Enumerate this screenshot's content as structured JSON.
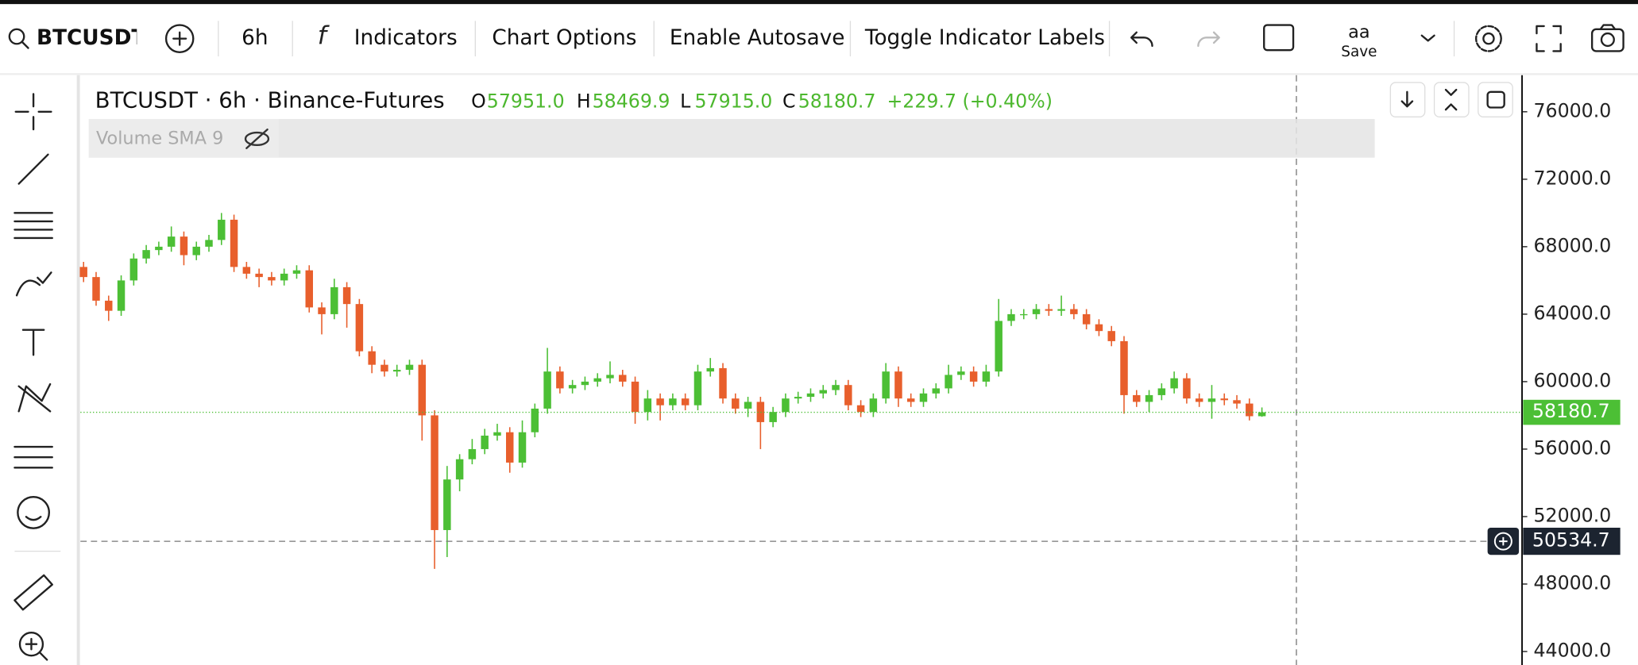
{
  "toolbar": {
    "symbol": "BTCUSDT",
    "interval": "6h",
    "buttons": [
      "Indicators",
      "Chart Options",
      "Enable Autosave",
      "Toggle Indicator Labels"
    ],
    "layout_label": "aa",
    "save": "Save"
  },
  "chart_data": {
    "type": "candlestick",
    "title": "BTCUSDT · 6h · Binance-Futures",
    "header": {
      "labels": [
        "O",
        "H",
        "L",
        "C"
      ],
      "values": [
        "57951.0",
        "58469.9",
        "57915.0",
        "58180.7"
      ],
      "change": "+229.7 (+0.40%)"
    },
    "indicator": "Volume SMA 9",
    "up_color": "#4cbf35",
    "down_color": "#e85f2c",
    "ylim": [
      43200,
      78170
    ],
    "yticks": [
      {
        "value": 76000,
        "label": "76000.0"
      },
      {
        "value": 72000,
        "label": "72000.0"
      },
      {
        "value": 68000,
        "label": "68000.0"
      },
      {
        "value": 64000,
        "label": "64000.0"
      },
      {
        "value": 60000,
        "label": "60000.0"
      },
      {
        "value": 56000,
        "label": "56000.0"
      },
      {
        "value": 52000,
        "label": "52000.0"
      },
      {
        "value": 48000,
        "label": "48000.0"
      },
      {
        "value": 44000,
        "label": "44000.0"
      }
    ],
    "last_price": {
      "value": 58180.7,
      "label": "58180.7"
    },
    "crosshair": {
      "value": 50534.7,
      "label": "50534.7"
    },
    "open": [
      66800,
      66200,
      64800,
      64200,
      66000,
      67300,
      67800,
      68000,
      68600,
      67500,
      68000,
      68400,
      69600,
      66800,
      66400,
      66200,
      66000,
      66400,
      66600,
      64400,
      64000,
      65600,
      64600,
      61800,
      61000,
      60600,
      60700,
      61000,
      58000,
      51200,
      54200,
      55400,
      56000,
      56800,
      57000,
      55200,
      57000,
      58400,
      60600,
      59600,
      59800,
      60000,
      60200,
      60400,
      60000,
      58200,
      59000,
      58600,
      59000,
      58600,
      60600,
      60800,
      59000,
      58400,
      58800,
      57600,
      58200,
      59000,
      59100,
      59300,
      59500,
      59800,
      58600,
      58200,
      59000,
      60600,
      59000,
      58800,
      59300,
      59600,
      60400,
      60600,
      60000,
      60600,
      63600,
      64000,
      64000,
      64300,
      64200,
      64300,
      64000,
      63400,
      63000,
      62400,
      59200,
      58800,
      59200,
      59600,
      60200,
      59000,
      58800,
      59000,
      58900,
      58700,
      57951.0
    ],
    "high": [
      67100,
      66500,
      65100,
      66300,
      67600,
      68100,
      68300,
      69200,
      68900,
      68300,
      68700,
      70000,
      69900,
      67100,
      66700,
      66500,
      66700,
      66900,
      66900,
      64700,
      66100,
      65900,
      64900,
      62100,
      61300,
      61000,
      61300,
      61300,
      58300,
      55000,
      55700,
      56600,
      57200,
      57500,
      57300,
      57700,
      58700,
      62000,
      60900,
      60100,
      60300,
      60500,
      61200,
      60700,
      60300,
      59500,
      59300,
      59300,
      59300,
      61000,
      61400,
      61100,
      59300,
      59100,
      59100,
      58500,
      59300,
      59400,
      59600,
      59800,
      60100,
      60100,
      58900,
      59300,
      61100,
      60900,
      59300,
      59600,
      59900,
      61000,
      60900,
      60900,
      61000,
      64900,
      64300,
      64300,
      64600,
      64600,
      65100,
      64600,
      64300,
      63700,
      63300,
      62700,
      59500,
      59500,
      59900,
      60600,
      60500,
      59300,
      59800,
      59300,
      59200,
      59000,
      58469.9
    ],
    "low": [
      65900,
      64500,
      63600,
      63900,
      65700,
      67000,
      67500,
      67700,
      66900,
      67200,
      67700,
      68100,
      66500,
      66100,
      65600,
      65700,
      65700,
      66100,
      64100,
      62800,
      63700,
      63200,
      61500,
      60500,
      60300,
      60300,
      60400,
      56500,
      48900,
      49600,
      53500,
      55100,
      55700,
      56500,
      54600,
      54900,
      56700,
      58100,
      59300,
      59300,
      59500,
      59700,
      59900,
      59700,
      57500,
      57700,
      57700,
      58300,
      58300,
      58300,
      60300,
      58700,
      58100,
      57900,
      56000,
      57300,
      57900,
      58700,
      58800,
      59000,
      59200,
      58300,
      57900,
      57900,
      58700,
      58500,
      58500,
      58500,
      59000,
      59300,
      60100,
      59700,
      59700,
      60300,
      63300,
      63700,
      63700,
      63900,
      63900,
      63700,
      63100,
      62700,
      62100,
      58100,
      58500,
      58200,
      58900,
      59300,
      58700,
      58500,
      57800,
      58600,
      58400,
      57700,
      57915.0
    ],
    "close": [
      66200,
      64800,
      64200,
      66000,
      67300,
      67800,
      68000,
      68600,
      67500,
      68000,
      68400,
      69600,
      66800,
      66400,
      66200,
      66000,
      66400,
      66600,
      64400,
      64000,
      65600,
      64600,
      61800,
      61000,
      60600,
      60700,
      61000,
      58000,
      51200,
      54200,
      55400,
      56000,
      56800,
      57000,
      55200,
      57000,
      58400,
      60600,
      59600,
      59800,
      60000,
      60200,
      60400,
      60000,
      58200,
      59000,
      58600,
      59000,
      58600,
      60600,
      60800,
      59000,
      58400,
      58800,
      57600,
      58200,
      59000,
      59100,
      59300,
      59500,
      59800,
      58600,
      58200,
      59000,
      60600,
      59000,
      58800,
      59300,
      59600,
      60400,
      60600,
      60000,
      60600,
      63600,
      64000,
      64000,
      64300,
      64200,
      64300,
      64000,
      63400,
      63000,
      62400,
      59200,
      58800,
      59200,
      59600,
      60200,
      59000,
      58800,
      59000,
      58900,
      58700,
      57950,
      58180.7
    ]
  }
}
